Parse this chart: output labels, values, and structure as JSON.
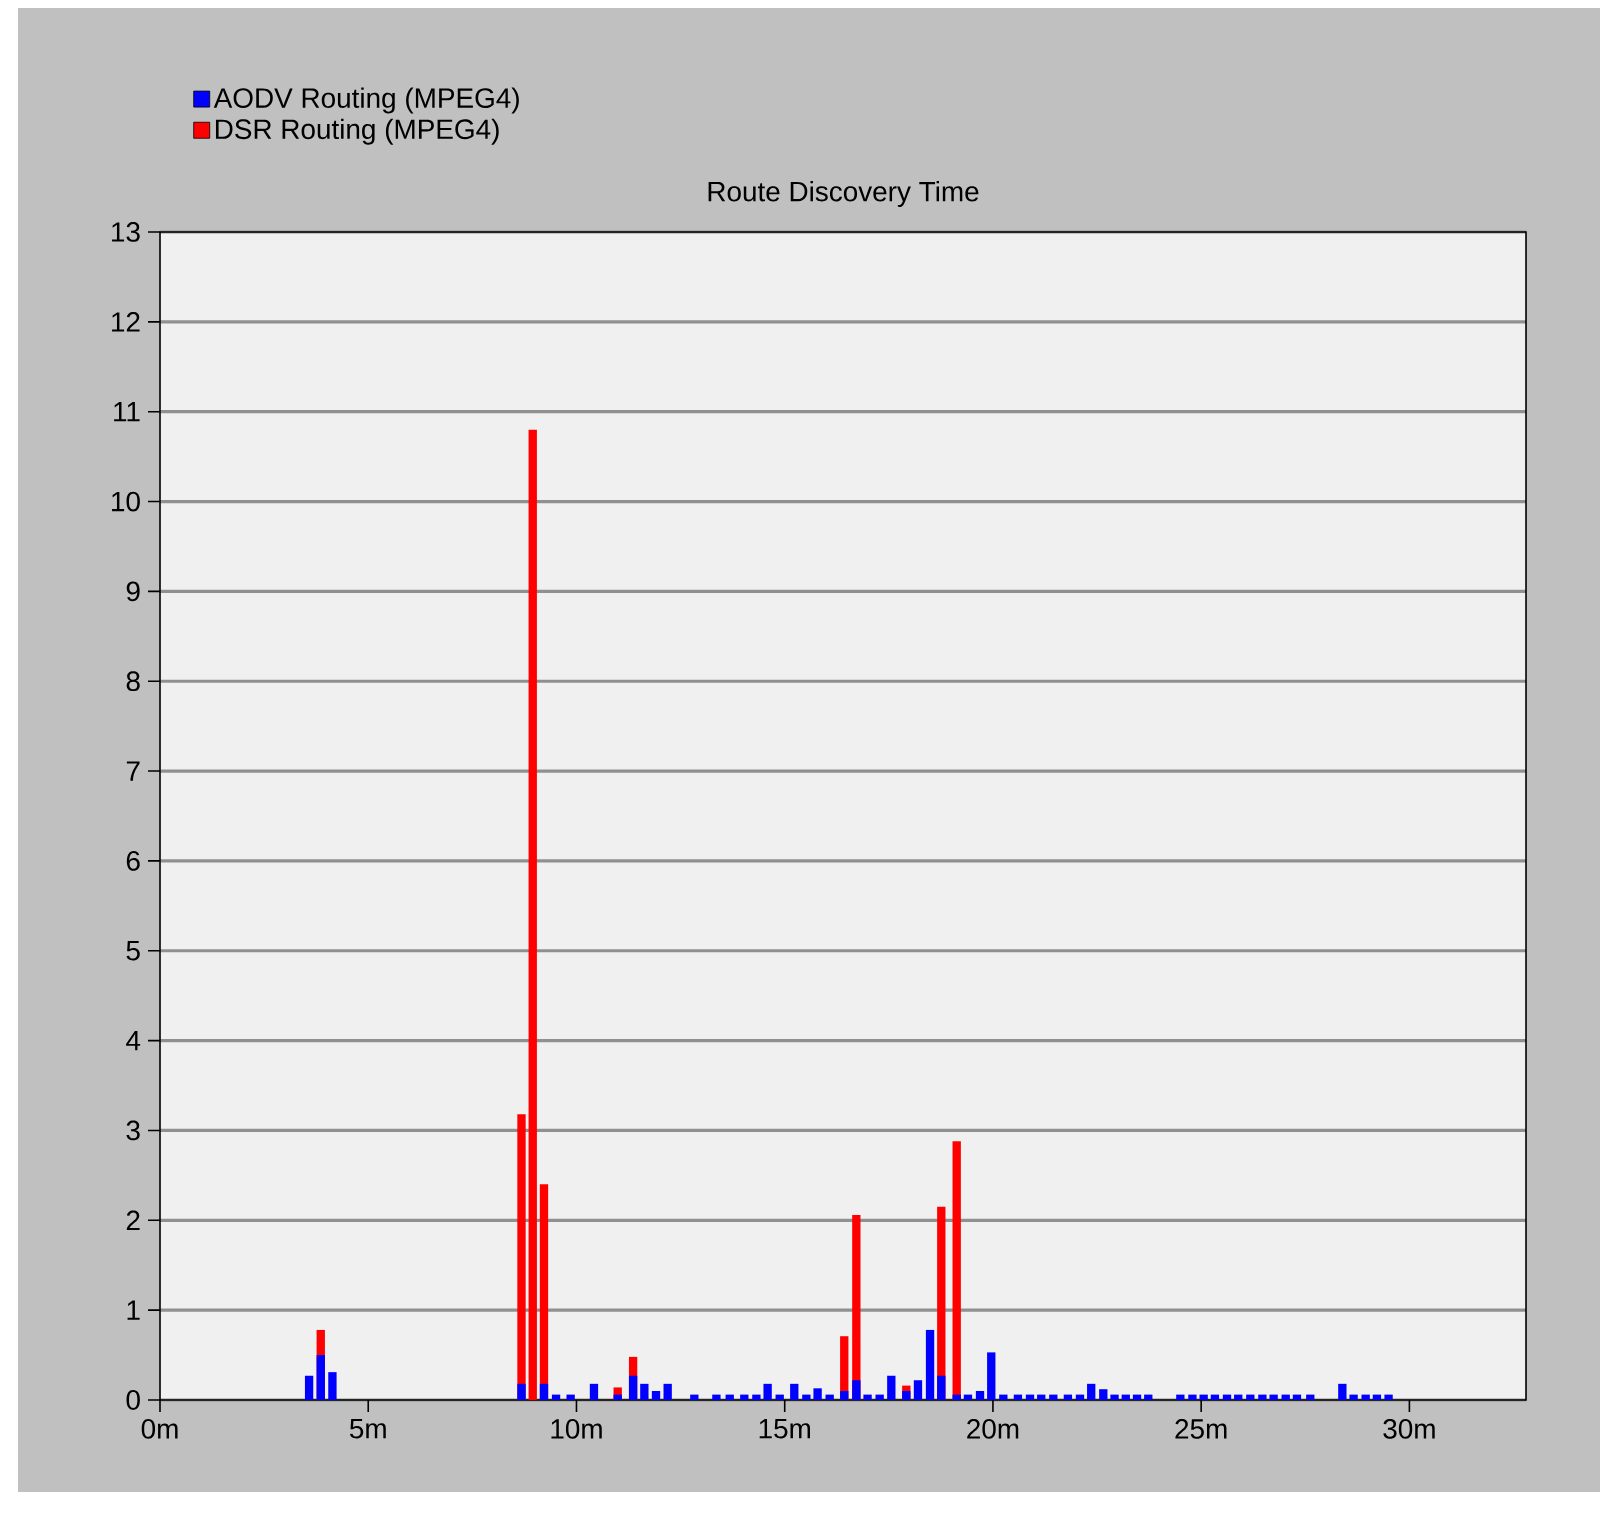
{
  "chart_data": {
    "type": "bar",
    "title": "Route Discovery Time",
    "series": [
      {
        "name": "AODV Routing (MPEG4)",
        "color": "#0000ff",
        "x": [
          3.58,
          3.86,
          4.14,
          8.68,
          9.22,
          9.51,
          9.86,
          10.42,
          10.99,
          11.36,
          11.63,
          11.91,
          12.19,
          12.83,
          13.36,
          13.68,
          14.03,
          14.32,
          14.59,
          14.88,
          15.23,
          15.52,
          15.79,
          16.08,
          16.43,
          16.72,
          16.99,
          17.28,
          17.56,
          17.92,
          18.2,
          18.49,
          18.76,
          19.13,
          19.4,
          19.69,
          19.96,
          20.25,
          20.6,
          20.89,
          21.16,
          21.45,
          21.8,
          22.09,
          22.36,
          22.65,
          22.92,
          23.19,
          23.46,
          23.73,
          24.5,
          24.79,
          25.06,
          25.33,
          25.62,
          25.89,
          26.18,
          26.47,
          26.74,
          27.03,
          27.3,
          27.62,
          28.39,
          28.66,
          28.95,
          29.22,
          29.5
        ],
        "values": [
          0.27,
          0.5,
          0.31,
          0.18,
          0.18,
          0.06,
          0.06,
          0.18,
          0.06,
          0.27,
          0.18,
          0.1,
          0.18,
          0.06,
          0.06,
          0.06,
          0.06,
          0.06,
          0.18,
          0.06,
          0.18,
          0.06,
          0.13,
          0.06,
          0.1,
          0.22,
          0.06,
          0.06,
          0.27,
          0.1,
          0.22,
          0.78,
          0.27,
          0.06,
          0.06,
          0.1,
          0.53,
          0.06,
          0.06,
          0.06,
          0.06,
          0.06,
          0.06,
          0.06,
          0.18,
          0.12,
          0.06,
          0.06,
          0.06,
          0.06,
          0.06,
          0.06,
          0.06,
          0.06,
          0.06,
          0.06,
          0.06,
          0.06,
          0.06,
          0.06,
          0.06,
          0.06,
          0.18,
          0.06,
          0.06,
          0.06,
          0.06
        ]
      },
      {
        "name": "DSR Routing (MPEG4)",
        "color": "#ff0000",
        "x": [
          3.86,
          8.68,
          8.95,
          9.22,
          10.99,
          11.36,
          16.43,
          16.72,
          17.92,
          18.76,
          19.13
        ],
        "values": [
          0.78,
          3.18,
          10.8,
          2.4,
          0.14,
          0.48,
          0.71,
          2.06,
          0.16,
          2.15,
          2.88
        ]
      }
    ],
    "xlim": [
      0,
      32.8
    ],
    "xticks": [
      {
        "value": 0,
        "label": "0m"
      },
      {
        "value": 5,
        "label": "5m"
      },
      {
        "value": 10,
        "label": "10m"
      },
      {
        "value": 15,
        "label": "15m"
      },
      {
        "value": 20,
        "label": "20m"
      },
      {
        "value": 25,
        "label": "25m"
      },
      {
        "value": 30,
        "label": "30m"
      }
    ],
    "ylim": [
      0,
      13
    ],
    "yticks": [
      0,
      1,
      2,
      3,
      4,
      5,
      6,
      7,
      8,
      9,
      10,
      11,
      12,
      13
    ],
    "grid": "y",
    "legend": "top left"
  }
}
